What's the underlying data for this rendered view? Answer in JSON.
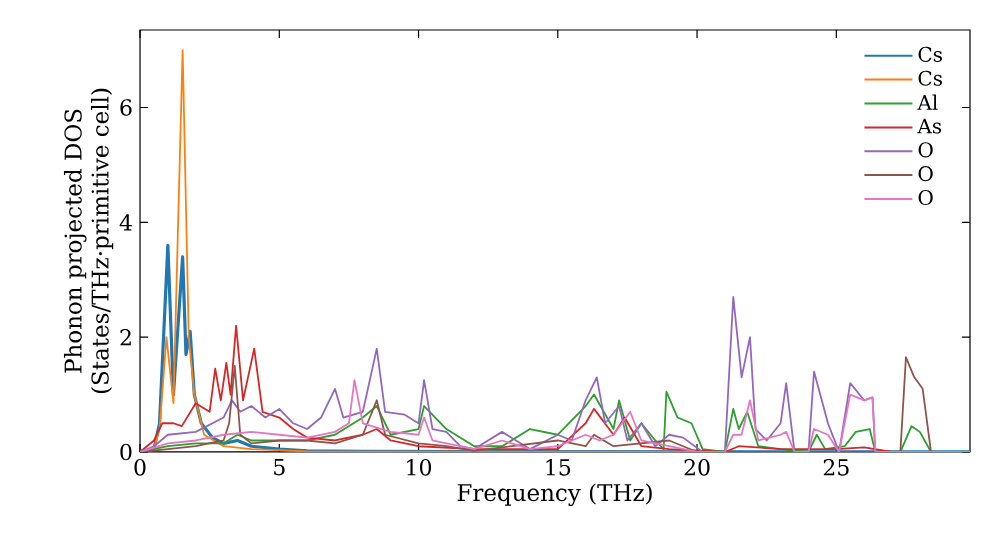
{
  "chart_data": {
    "type": "line",
    "xlabel": "Frequency (THz)",
    "ylabel": "Phonon projected DOS\n(States/THz·primitive cell)",
    "xlim": [
      0,
      29.8
    ],
    "ylim": [
      0,
      7.35
    ],
    "xticks": [
      0,
      5,
      10,
      15,
      20,
      25
    ],
    "yticks": [
      0,
      2,
      4,
      6
    ],
    "legend": "top right",
    "grid": false,
    "series": [
      {
        "name": "Cs",
        "color": "#1f77b4",
        "x": [
          0,
          0.5,
          0.7,
          1.0,
          1.2,
          1.53,
          1.65,
          1.8,
          1.95,
          2.2,
          2.6,
          3,
          3.5,
          4,
          5,
          6,
          8,
          29.8
        ],
        "values": [
          0,
          0.05,
          0.5,
          3.6,
          1.0,
          3.4,
          1.7,
          2.1,
          1.0,
          0.5,
          0.25,
          0.15,
          0.2,
          0.1,
          0.05,
          0.02,
          0.01,
          0
        ]
      },
      {
        "name": "Cs",
        "color": "#ff7f0e",
        "x": [
          0,
          0.5,
          0.7,
          0.95,
          1.2,
          1.53,
          1.75,
          1.95,
          2.3,
          3,
          4,
          6,
          29.8
        ],
        "values": [
          0,
          0.05,
          0.4,
          2.0,
          0.85,
          7.0,
          2.0,
          1.0,
          0.3,
          0.1,
          0.05,
          0.01,
          0
        ]
      },
      {
        "name": "Al",
        "color": "#2ca02c",
        "x": [
          0,
          1,
          2,
          3,
          3.5,
          4,
          5,
          6,
          7,
          8,
          8.5,
          9,
          10,
          10.2,
          11,
          12,
          13,
          14,
          15,
          16,
          16.3,
          17,
          17.2,
          17.6,
          18,
          18.5,
          18.8,
          18.9,
          19.3,
          19.8,
          20.2,
          21.0,
          21.3,
          21.5,
          21.8,
          22.2,
          23,
          24,
          24.3,
          24.6,
          25.3,
          25.7,
          26.2,
          26.4,
          27.3,
          27.7,
          28,
          28.4,
          29.8
        ],
        "values": [
          0,
          0.1,
          0.15,
          0.15,
          0.3,
          0.2,
          0.2,
          0.2,
          0.3,
          0.6,
          0.8,
          0.3,
          0.4,
          0.8,
          0.4,
          0.1,
          0.1,
          0.4,
          0.3,
          0.8,
          1.0,
          0.4,
          0.9,
          0.2,
          0.5,
          0.2,
          0.05,
          1.05,
          0.6,
          0.5,
          0.05,
          0,
          0.75,
          0.4,
          0.7,
          0.1,
          0.05,
          0,
          0.3,
          0.05,
          0.1,
          0.35,
          0.4,
          0,
          0,
          0.45,
          0.35,
          0,
          0
        ]
      },
      {
        "name": "As",
        "color": "#d62728",
        "x": [
          0,
          0.5,
          0.8,
          1.2,
          1.5,
          2,
          2.5,
          2.7,
          2.9,
          3.1,
          3.25,
          3.45,
          3.7,
          4.1,
          4.4,
          5,
          5.5,
          6,
          7,
          8,
          8.5,
          9,
          10,
          12,
          15,
          16,
          16.3,
          17,
          17.4,
          18,
          19,
          21,
          21.5,
          23,
          25,
          26,
          27,
          29.8
        ],
        "values": [
          0,
          0.2,
          0.5,
          0.5,
          0.45,
          0.85,
          0.7,
          1.45,
          0.9,
          1.55,
          1.0,
          2.2,
          0.9,
          1.8,
          0.7,
          0.6,
          0.4,
          0.25,
          0.2,
          0.3,
          0.4,
          0.2,
          0.1,
          0.05,
          0.05,
          0.5,
          0.75,
          0.3,
          0.6,
          0.1,
          0.05,
          0,
          0.1,
          0.05,
          0.05,
          0.08,
          0,
          0
        ]
      },
      {
        "name": "O",
        "color": "#9467bd",
        "x": [
          0,
          0.5,
          1,
          2,
          3,
          3.3,
          3.6,
          4,
          4.5,
          5,
          5.5,
          6,
          6.5,
          7,
          7.3,
          8,
          8.5,
          8.8,
          9.5,
          10,
          10.2,
          10.5,
          11,
          11.5,
          12,
          13,
          13.5,
          14,
          15,
          15.5,
          16,
          16.4,
          16.7,
          17.2,
          17.5,
          18,
          18.5,
          19,
          19.5,
          20.2,
          21,
          21.3,
          21.6,
          21.9,
          22.1,
          22.5,
          23,
          23.2,
          23.5,
          24.0,
          24.2,
          24.7,
          25.1,
          25.5,
          26,
          26.3,
          26.4,
          29.8
        ],
        "values": [
          0,
          0.1,
          0.3,
          0.35,
          0.6,
          0.9,
          0.7,
          0.8,
          0.6,
          0.75,
          0.5,
          0.4,
          0.6,
          1.1,
          0.6,
          0.7,
          1.8,
          0.7,
          0.65,
          0.5,
          1.25,
          0.4,
          0.35,
          0.1,
          0.05,
          0.35,
          0.2,
          0.05,
          0.3,
          0.2,
          0.9,
          1.3,
          0.5,
          0.8,
          0.2,
          0.5,
          0.1,
          0.3,
          0.25,
          0,
          0,
          2.7,
          1.3,
          2.0,
          0.4,
          0.2,
          0.5,
          1.2,
          0,
          0,
          1.4,
          0.5,
          0,
          1.2,
          0.9,
          0.95,
          0,
          0
        ]
      },
      {
        "name": "O",
        "color": "#8c564b",
        "x": [
          0,
          1,
          2,
          3,
          3.2,
          3.4,
          3.6,
          4,
          5,
          6,
          7,
          8,
          8.5,
          8.8,
          10,
          11,
          12,
          15,
          16,
          16.3,
          17,
          19,
          19.5,
          20,
          27.3,
          27.5,
          27.8,
          28.1,
          28.4,
          29.8
        ],
        "values": [
          0,
          0.05,
          0.1,
          0.2,
          0.5,
          1.5,
          0.3,
          0.15,
          0.2,
          0.2,
          0.15,
          0.3,
          0.9,
          0.3,
          0.15,
          0.1,
          0.02,
          0.2,
          0.1,
          0.3,
          0.1,
          0.2,
          0.1,
          0,
          0,
          1.65,
          1.3,
          1.1,
          0,
          0
        ]
      },
      {
        "name": "O",
        "color": "#e377c2",
        "x": [
          0,
          1,
          2,
          3,
          4,
          5,
          6,
          7,
          7.5,
          7.7,
          8.0,
          9,
          10,
          10.2,
          10.5,
          11,
          12,
          13,
          14,
          15,
          16,
          16.5,
          17,
          17.3,
          17.6,
          18,
          19,
          20,
          21,
          21.3,
          21.6,
          21.9,
          22.2,
          23,
          23.2,
          23.5,
          24.0,
          24.2,
          24.7,
          25.1,
          25.5,
          26,
          26.3,
          26.4,
          29.8
        ],
        "values": [
          0,
          0.15,
          0.2,
          0.3,
          0.35,
          0.3,
          0.25,
          0.35,
          0.5,
          1.25,
          0.5,
          0.35,
          0.3,
          0.6,
          0.2,
          0.15,
          0.05,
          0.2,
          0.05,
          0.1,
          0.3,
          0.2,
          0.3,
          0.5,
          0.7,
          0.2,
          0.1,
          0,
          0,
          0.3,
          0.3,
          0.9,
          0.2,
          0.3,
          0.35,
          0,
          0,
          0.4,
          0.3,
          0,
          1.0,
          0.9,
          0.95,
          0,
          0
        ]
      }
    ]
  }
}
